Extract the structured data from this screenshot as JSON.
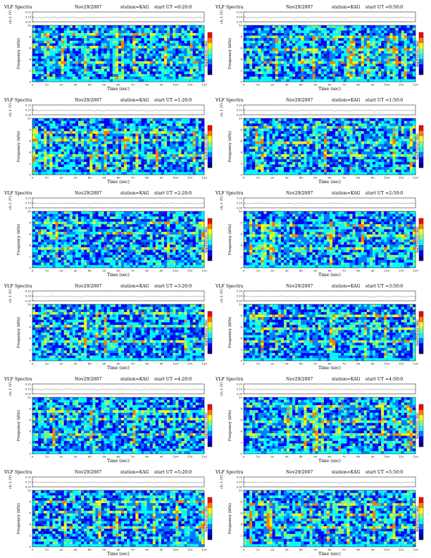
{
  "chart_data": {
    "type": "heatmap",
    "common": {
      "title": "VLF Spectra",
      "date": "Nov29/2007",
      "station_label": "station=KAG",
      "ch_label": "ch.1 (V)",
      "spec_ylabel": "Frequency (kHz)",
      "xlabel": "Time (sec)",
      "colorbar_label": "log(PSD)(V²/Hz)",
      "x_ticks": [
        "0",
        "10",
        "20",
        "30",
        "40",
        "50",
        "60",
        "70",
        "80",
        "90",
        "100",
        "110",
        "120"
      ],
      "y_ticks": [
        "0",
        "2",
        "4",
        "6",
        "8",
        "10"
      ],
      "ch_ticks": [
        "0.00",
        "0.10",
        "0.20"
      ],
      "xlim": [
        0,
        120
      ],
      "ylim_khz": [
        0,
        10
      ],
      "colormap": [
        "#00007f",
        "#0000ff",
        "#0080ff",
        "#00ffff",
        "#7fff7f",
        "#ffff00",
        "#ff8000",
        "#ff0000"
      ]
    },
    "panels": [
      {
        "start_ut": "start UT =0:20:0"
      },
      {
        "start_ut": "start UT =0:50:0"
      },
      {
        "start_ut": "start UT =1:20:0"
      },
      {
        "start_ut": "start UT =1:50:0"
      },
      {
        "start_ut": "start UT =2:20:0"
      },
      {
        "start_ut": "start UT =2:50:0"
      },
      {
        "start_ut": "start UT =3:20:0"
      },
      {
        "start_ut": "start UT =3:50:0"
      },
      {
        "start_ut": "start UT =4:20:0"
      },
      {
        "start_ut": "start UT =4:50:0"
      },
      {
        "start_ut": "start UT =5:20:0"
      },
      {
        "start_ut": "start UT =5:50:0"
      }
    ]
  }
}
